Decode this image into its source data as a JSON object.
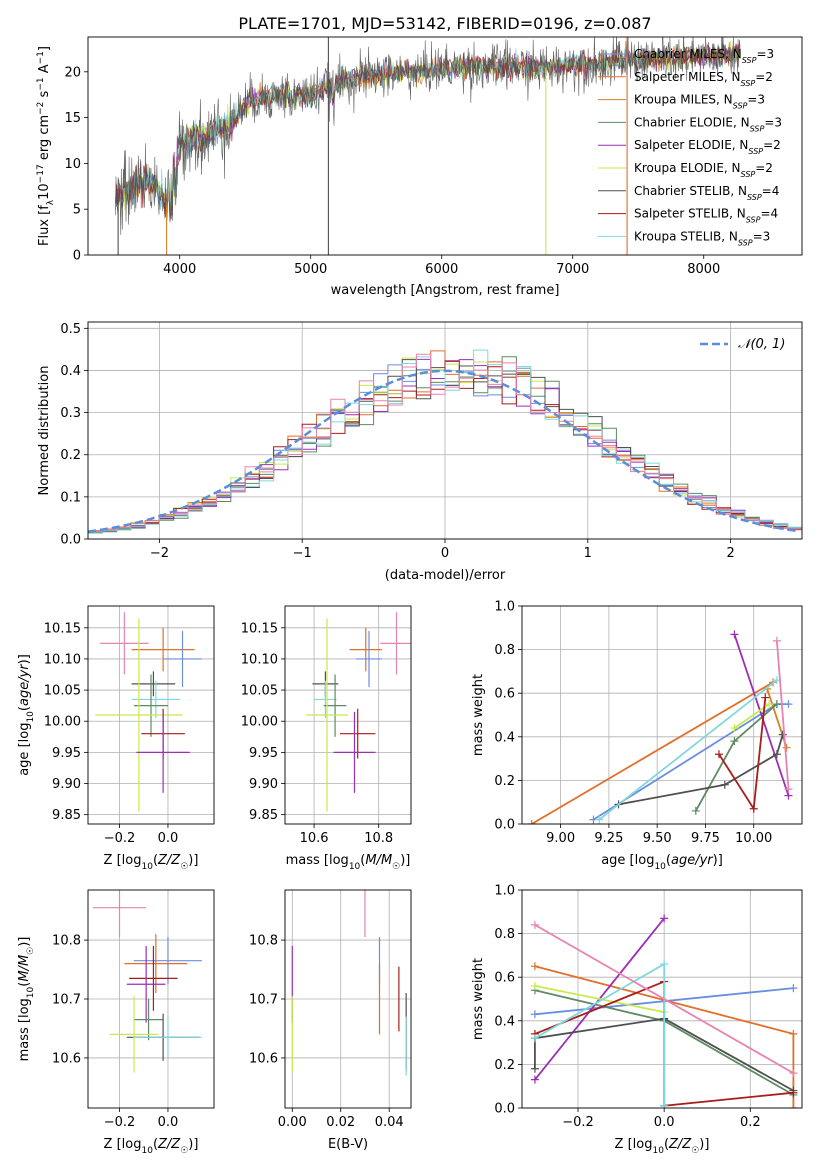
{
  "figure": {
    "title": "PLATE=1701, MJD=53142, FIBERID=0196, z=0.087"
  },
  "series_colors": {
    "Chabrier MILES": "#6a8ee0",
    "Salpeter MILES": "#e26f2a",
    "Kroupa MILES": "#d48324",
    "Chabrier ELODIE": "#5d8b63",
    "Salpeter ELODIE": "#9b2fb8",
    "Kroupa ELODIE": "#c8ea4b",
    "Chabrier STELIB": "#505050",
    "Salpeter STELIB": "#a81d1d",
    "Kroupa STELIB": "#80d8dc",
    "extra": "#e882b0"
  },
  "chart_data": [
    {
      "id": "spectrum",
      "type": "line",
      "xlabel": "wavelength [Angstrom, rest frame]",
      "ylabel": "Flux [f_λ 10^-17 erg cm^-2 s^-1 A^-1]",
      "xlim": [
        3300,
        8750
      ],
      "ylim": [
        0,
        23.8
      ],
      "xticks": [
        4000,
        5000,
        6000,
        7000,
        8000
      ],
      "yticks": [
        0,
        5,
        10,
        15,
        20
      ],
      "legend_position": "top-right",
      "legend": [
        {
          "name": "Chabrier MILES, N_SSP=3",
          "label": "Chabrier MILES, N",
          "sub": "SSP",
          "tail": "=3",
          "color": "#6a8ee0"
        },
        {
          "name": "Salpeter MILES, N_SSP=2",
          "label": "Salpeter MILES, N",
          "sub": "SSP",
          "tail": "=2",
          "color": "#e26f2a"
        },
        {
          "name": "Kroupa MILES, N_SSP=3",
          "label": "Kroupa MILES, N",
          "sub": "SSP",
          "tail": "=3",
          "color": "#d48324"
        },
        {
          "name": "Chabrier ELODIE, N_SSP=3",
          "label": "Chabrier ELODIE, N",
          "sub": "SSP",
          "tail": "=3",
          "color": "#5d8b63"
        },
        {
          "name": "Salpeter ELODIE, N_SSP=2",
          "label": "Salpeter ELODIE, N",
          "sub": "SSP",
          "tail": "=2",
          "color": "#9b2fb8"
        },
        {
          "name": "Kroupa ELODIE, N_SSP=2",
          "label": "Kroupa ELODIE, N",
          "sub": "SSP",
          "tail": "=2",
          "color": "#c8ea4b"
        },
        {
          "name": "Chabrier STELIB, N_SSP=4",
          "label": "Chabrier STELIB, N",
          "sub": "SSP",
          "tail": "=4",
          "color": "#505050"
        },
        {
          "name": "Salpeter STELIB, N_SSP=4",
          "label": "Salpeter STELIB, N",
          "sub": "SSP",
          "tail": "=4",
          "color": "#a81d1d"
        },
        {
          "name": "Kroupa STELIB, N_SSP=3",
          "label": "Kroupa STELIB, N",
          "sub": "SSP",
          "tail": "=3",
          "color": "#80d8dc"
        }
      ],
      "continuum": {
        "x": [
          3500,
          3600,
          3700,
          3800,
          3900,
          4000,
          4100,
          4200,
          4300,
          4400,
          4500,
          4600,
          4800,
          5000,
          5200,
          5400,
          5600,
          5800,
          6000,
          6200,
          6500,
          6800,
          7000,
          7200,
          7500,
          7800,
          8000,
          8200,
          8300
        ],
        "y": [
          6.0,
          7.0,
          8.0,
          8.0,
          5.5,
          12.0,
          13.0,
          12.5,
          14.0,
          14.5,
          16.5,
          17.0,
          17.5,
          17.5,
          18.8,
          19.5,
          19.8,
          20.0,
          20.4,
          20.6,
          20.6,
          20.4,
          20.8,
          21.0,
          21.3,
          21.5,
          21.6,
          21.8,
          22.0
        ]
      },
      "spikes": [
        {
          "x": 3530,
          "y0": 0,
          "y1": 6.0,
          "color": "#505050"
        },
        {
          "x": 3900,
          "y0": 0,
          "y1": 5.5,
          "color": "#d48324"
        },
        {
          "x": 5135,
          "y0": 0,
          "y1": 23.8,
          "color": "#505050"
        },
        {
          "x": 6795,
          "y0": 0,
          "y1": 20.5,
          "color": "#c8ea4b"
        },
        {
          "x": 7415,
          "y0": 0,
          "y1": 23.8,
          "color": "#e26f2a"
        }
      ]
    },
    {
      "id": "residuals",
      "type": "line",
      "xlabel": "(data-model)/error",
      "ylabel": "Normed distribution",
      "xlim": [
        -2.5,
        2.5
      ],
      "ylim": [
        0,
        0.515
      ],
      "xticks": [
        -2,
        -1,
        0,
        1,
        2
      ],
      "yticks": [
        0.0,
        0.1,
        0.2,
        0.3,
        0.4,
        0.5
      ],
      "legend_position": "top-right",
      "legend": [
        {
          "name": "N(0,1)",
          "label": "𝒩(0, 1)",
          "color": "#5b8ed8"
        }
      ],
      "normal_curve": {
        "mean": 0,
        "sigma": 1,
        "color": "#5b8ed8"
      },
      "hist_bin_width": 0.1
    },
    {
      "id": "age_vs_z",
      "type": "scatter",
      "xlabel": "Z [log10(Z/Z☉)]",
      "ylabel": "age [log10(age/yr)]",
      "xlim": [
        -0.33,
        0.19
      ],
      "ylim": [
        9.835,
        10.185
      ],
      "xticks": [
        -0.2,
        0.0
      ],
      "yticks": [
        9.85,
        9.9,
        9.95,
        10.0,
        10.05,
        10.1,
        10.15
      ],
      "points": [
        {
          "color": "#e882b0",
          "x": -0.18,
          "xerr": 0.1,
          "y": 10.125,
          "yerr": 0.05
        },
        {
          "color": "#e26f2a",
          "x": -0.02,
          "xerr": 0.13,
          "y": 10.115,
          "yerr": 0.035
        },
        {
          "color": "#6a8ee0",
          "x": 0.06,
          "xerr": 0.08,
          "y": 10.1,
          "yerr": 0.045
        },
        {
          "color": "#505050",
          "x": -0.06,
          "xerr": 0.09,
          "y": 10.06,
          "yerr": 0.02
        },
        {
          "color": "#80d8dc",
          "x": -0.05,
          "xerr": 0.1,
          "y": 10.035,
          "yerr": 0.03
        },
        {
          "color": "#5d8b63",
          "x": -0.07,
          "xerr": 0.07,
          "y": 10.025,
          "yerr": 0.05
        },
        {
          "color": "#c8ea4b",
          "x": -0.12,
          "xerr": 0.18,
          "y": 10.01,
          "yerr": 0.155
        },
        {
          "color": "#a81d1d",
          "x": -0.02,
          "xerr": 0.09,
          "y": 9.98,
          "yerr": 0.04
        },
        {
          "color": "#9b2fb8",
          "x": -0.02,
          "xerr": 0.11,
          "y": 9.95,
          "yerr": 0.065
        }
      ]
    },
    {
      "id": "age_vs_mass",
      "type": "scatter",
      "xlabel": "mass [log10(M/M☉)]",
      "ylabel": "",
      "xlim": [
        10.51,
        10.9
      ],
      "ylim": [
        9.835,
        10.185
      ],
      "xticks": [
        10.6,
        10.8
      ],
      "yticks": [
        9.85,
        9.9,
        9.95,
        10.0,
        10.05,
        10.1,
        10.15
      ],
      "points": [
        {
          "color": "#e882b0",
          "x": 10.855,
          "xerr": 0.05,
          "y": 10.125,
          "yerr": 0.05
        },
        {
          "color": "#e26f2a",
          "x": 10.76,
          "xerr": 0.05,
          "y": 10.115,
          "yerr": 0.035
        },
        {
          "color": "#6a8ee0",
          "x": 10.77,
          "xerr": 0.04,
          "y": 10.1,
          "yerr": 0.045
        },
        {
          "color": "#505050",
          "x": 10.635,
          "xerr": 0.04,
          "y": 10.06,
          "yerr": 0.02
        },
        {
          "color": "#80d8dc",
          "x": 10.635,
          "xerr": 0.035,
          "y": 10.035,
          "yerr": 0.03
        },
        {
          "color": "#5d8b63",
          "x": 10.665,
          "xerr": 0.035,
          "y": 10.025,
          "yerr": 0.05
        },
        {
          "color": "#c8ea4b",
          "x": 10.64,
          "xerr": 0.065,
          "y": 10.01,
          "yerr": 0.155
        },
        {
          "color": "#a81d1d",
          "x": 10.735,
          "xerr": 0.055,
          "y": 9.98,
          "yerr": 0.04
        },
        {
          "color": "#9b2fb8",
          "x": 10.725,
          "xerr": 0.065,
          "y": 9.95,
          "yerr": 0.065
        }
      ]
    },
    {
      "id": "weight_vs_age",
      "type": "line",
      "xlabel": "age [log10(age/yr)]",
      "ylabel": "mass weight",
      "xlim": [
        8.8,
        10.25
      ],
      "ylim": [
        0,
        1.0
      ],
      "xticks": [
        9.0,
        9.25,
        9.5,
        9.75,
        10.0
      ],
      "yticks": [
        0.0,
        0.2,
        0.4,
        0.6,
        0.8,
        1.0
      ],
      "series": [
        {
          "color": "#6a8ee0",
          "x": [
            9.17,
            10.12,
            10.18
          ],
          "y": [
            0.02,
            0.55,
            0.55
          ]
        },
        {
          "color": "#e26f2a",
          "x": [
            8.85,
            10.1
          ],
          "y": [
            0.0,
            0.65
          ]
        },
        {
          "color": "#d48324",
          "x": [
            10.07,
            10.17
          ],
          "y": [
            0.62,
            0.35
          ]
        },
        {
          "color": "#5d8b63",
          "x": [
            9.7,
            9.9,
            10.12
          ],
          "y": [
            0.06,
            0.38,
            0.55
          ]
        },
        {
          "color": "#9b2fb8",
          "x": [
            9.9,
            10.18
          ],
          "y": [
            0.87,
            0.13
          ]
        },
        {
          "color": "#c8ea4b",
          "x": [
            9.9,
            10.08
          ],
          "y": [
            0.44,
            0.55
          ]
        },
        {
          "color": "#505050",
          "x": [
            9.3,
            9.85,
            10.12,
            10.15
          ],
          "y": [
            0.09,
            0.18,
            0.32,
            0.41
          ]
        },
        {
          "color": "#a81d1d",
          "x": [
            9.82,
            10.0,
            10.06
          ],
          "y": [
            0.32,
            0.07,
            0.58
          ]
        },
        {
          "color": "#80d8dc",
          "x": [
            9.2,
            10.12
          ],
          "y": [
            0.02,
            0.66
          ]
        },
        {
          "color": "#e882b0",
          "x": [
            10.12,
            10.18
          ],
          "y": [
            0.84,
            0.16
          ]
        }
      ]
    },
    {
      "id": "mass_vs_z",
      "type": "scatter",
      "xlabel": "Z [log10(Z/Z☉)]",
      "ylabel": "mass [log10(M/M☉)]",
      "xlim": [
        -0.33,
        0.19
      ],
      "ylim": [
        10.515,
        10.885
      ],
      "xticks": [
        -0.2,
        0.0
      ],
      "yticks": [
        10.6,
        10.7,
        10.8
      ],
      "points": [
        {
          "color": "#e882b0",
          "x": -0.2,
          "xerr": 0.11,
          "y": 10.855,
          "yerr": 0.05
        },
        {
          "color": "#6a8ee0",
          "x": 0.0,
          "xerr": 0.14,
          "y": 10.765,
          "yerr": 0.04
        },
        {
          "color": "#e26f2a",
          "x": -0.05,
          "xerr": 0.13,
          "y": 10.76,
          "yerr": 0.05
        },
        {
          "color": "#a81d1d",
          "x": -0.06,
          "xerr": 0.1,
          "y": 10.735,
          "yerr": 0.055
        },
        {
          "color": "#9b2fb8",
          "x": -0.09,
          "xerr": 0.08,
          "y": 10.725,
          "yerr": 0.065
        },
        {
          "color": "#5d8b63",
          "x": -0.08,
          "xerr": 0.06,
          "y": 10.665,
          "yerr": 0.035
        },
        {
          "color": "#505050",
          "x": -0.02,
          "xerr": 0.15,
          "y": 10.635,
          "yerr": 0.04
        },
        {
          "color": "#80d8dc",
          "x": 0.0,
          "xerr": 0.14,
          "y": 10.635,
          "yerr": 0.035
        },
        {
          "color": "#c8ea4b",
          "x": -0.14,
          "xerr": 0.1,
          "y": 10.64,
          "yerr": 0.065
        }
      ]
    },
    {
      "id": "mass_vs_ebv",
      "type": "scatter",
      "xlabel": "E(B-V)",
      "ylabel": "",
      "xlim": [
        -0.003,
        0.049
      ],
      "ylim": [
        10.515,
        10.885
      ],
      "xticks": [
        0.0,
        0.02,
        0.04
      ],
      "yticks": [
        10.6,
        10.7,
        10.8
      ],
      "points": [
        {
          "color": "#9b2fb8",
          "x": 0.0,
          "y": 10.725,
          "yerr": 0.065
        },
        {
          "color": "#c8ea4b",
          "x": 0.0,
          "y": 10.64,
          "yerr": 0.065
        },
        {
          "color": "#e882b0",
          "x": 0.03,
          "y": 10.855,
          "yerr": 0.05
        },
        {
          "color": "#6a8ee0",
          "x": 0.036,
          "y": 10.765,
          "yerr": 0.04
        },
        {
          "color": "#e26f2a",
          "x": 0.036,
          "y": 10.7,
          "yerr": 0.06
        },
        {
          "color": "#a81d1d",
          "x": 0.044,
          "y": 10.7,
          "yerr": 0.055
        },
        {
          "color": "#505050",
          "x": 0.047,
          "y": 10.645,
          "yerr": 0.065
        },
        {
          "color": "#80d8dc",
          "x": 0.047,
          "y": 10.62,
          "yerr": 0.05
        }
      ]
    },
    {
      "id": "weight_vs_z",
      "type": "line",
      "xlabel": "Z [log10(Z/Z☉)]",
      "ylabel": "mass weight",
      "xlim": [
        -0.33,
        0.32
      ],
      "ylim": [
        0,
        1.0
      ],
      "xticks": [
        -0.2,
        0.0,
        0.2
      ],
      "yticks": [
        0.0,
        0.2,
        0.4,
        0.6,
        0.8,
        1.0
      ],
      "series": [
        {
          "color": "#6a8ee0",
          "x": [
            -0.3,
            0.0,
            0.3
          ],
          "y": [
            0.43,
            0.49,
            0.55
          ]
        },
        {
          "color": "#e26f2a",
          "x": [
            -0.3,
            0.3,
            0.3
          ],
          "y": [
            0.65,
            0.34,
            0.0
          ]
        },
        {
          "color": "#5d8b63",
          "x": [
            -0.3,
            0.0,
            0.3
          ],
          "y": [
            0.54,
            0.4,
            0.06
          ]
        },
        {
          "color": "#9b2fb8",
          "x": [
            -0.3,
            0.0
          ],
          "y": [
            0.13,
            0.87
          ]
        },
        {
          "color": "#c8ea4b",
          "x": [
            -0.3,
            0.0
          ],
          "y": [
            0.56,
            0.44
          ]
        },
        {
          "color": "#505050",
          "x": [
            -0.3,
            -0.3,
            0.0,
            0.3
          ],
          "y": [
            0.18,
            0.32,
            0.41,
            0.08
          ]
        },
        {
          "color": "#a81d1d",
          "x": [
            -0.3,
            0.0,
            0.0,
            0.3
          ],
          "y": [
            0.34,
            0.58,
            0.01,
            0.07
          ]
        },
        {
          "color": "#80d8dc",
          "x": [
            -0.3,
            0.0,
            0.0
          ],
          "y": [
            0.32,
            0.66,
            0.01
          ]
        },
        {
          "color": "#e882b0",
          "x": [
            -0.3,
            0.3
          ],
          "y": [
            0.84,
            0.16
          ]
        }
      ]
    }
  ]
}
